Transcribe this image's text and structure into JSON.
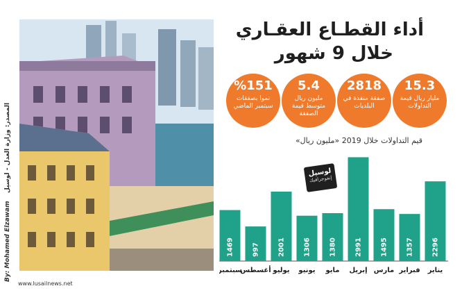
{
  "header": {
    "title_line1": "أداء القطـاع العقـاري",
    "title_line2": "خلال 9 شهور"
  },
  "stats": [
    {
      "value": "15.3",
      "label": "مليار ريال قيمة التداولات"
    },
    {
      "value": "2818",
      "label": "صفقة منفذة في البلديات"
    },
    {
      "value": "5.4",
      "label": "مليون ريال متوسط قيمة الصفقة"
    },
    {
      "value": "%151",
      "label": "نموا بصفقات سبتمبر الماضي"
    }
  ],
  "badge": {
    "text": "لوسيل",
    "subtext": "إنفوجرافيك"
  },
  "credits": {
    "source": "المصدر: وزارة العدل - لوسيل",
    "author": "By: Mohamed Elzawam",
    "website": "www.lusailnews.net"
  },
  "colors": {
    "bar": "#1fa18a",
    "accent": "#f07a2c",
    "axis": "#555555"
  },
  "chart_data": {
    "type": "bar",
    "title": "قيم التداولات خلال 2019 «مليون ريال»",
    "categories": [
      "يناير",
      "فبراير",
      "مارس",
      "إبريل",
      "مايو",
      "يونيو",
      "يوليو",
      "أغسطس",
      "سبتمبر"
    ],
    "values": [
      2296,
      1357,
      1495,
      2991,
      1380,
      1306,
      2001,
      997,
      1469
    ],
    "value_labels": [
      "2296",
      "1357",
      "1495",
      "2991",
      "1380",
      "1306",
      "2001",
      "997",
      "1469"
    ],
    "category_order": "right-to-left",
    "ylim": [
      0,
      3000
    ],
    "grid": false
  }
}
